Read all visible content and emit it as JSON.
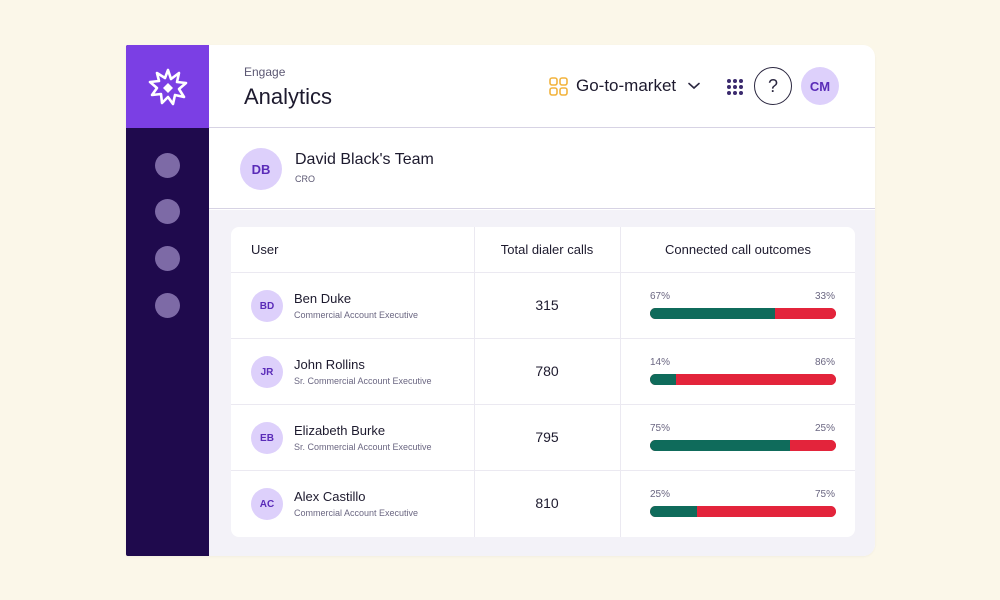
{
  "colors": {
    "sidebar": "#1f0a4d",
    "logo_tile": "#7b3fe4",
    "avatar_bg": "#ddd0fb",
    "avatar_text": "#5a2bb8",
    "positive": "#0f6b5b",
    "negative": "#e3243b",
    "workspace_icon": "#f2b33d"
  },
  "sidebar": {
    "logo_icon": "starburst-logo-icon",
    "nav_items": 4
  },
  "header": {
    "eyebrow": "Engage",
    "title": "Analytics",
    "workspace": {
      "icon": "grid-squares-icon",
      "label": "Go-to-market",
      "chevron": "chevron-down-icon"
    },
    "apps_icon": "app-grid-icon",
    "help_label": "?",
    "user_initials": "CM"
  },
  "team": {
    "initials": "DB",
    "name": "David Black's Team",
    "role": "CRO"
  },
  "table": {
    "columns": {
      "user": "User",
      "calls": "Total dialer calls",
      "outcomes": "Connected call outcomes"
    },
    "rows": [
      {
        "initials": "BD",
        "name": "Ben Duke",
        "role": "Commercial Account Executive",
        "calls": "315",
        "connected_pct": 67,
        "connected_label": "67%",
        "other_label": "33%"
      },
      {
        "initials": "JR",
        "name": "John Rollins",
        "role": "Sr. Commercial Account Executive",
        "calls": "780",
        "connected_pct": 14,
        "connected_label": "14%",
        "other_label": "86%"
      },
      {
        "initials": "EB",
        "name": "Elizabeth Burke",
        "role": "Sr. Commercial Account Executive",
        "calls": "795",
        "connected_pct": 75,
        "connected_label": "75%",
        "other_label": "25%"
      },
      {
        "initials": "AC",
        "name": "Alex Castillo",
        "role": "Commercial Account Executive",
        "calls": "810",
        "connected_pct": 25,
        "connected_label": "25%",
        "other_label": "75%"
      }
    ]
  }
}
